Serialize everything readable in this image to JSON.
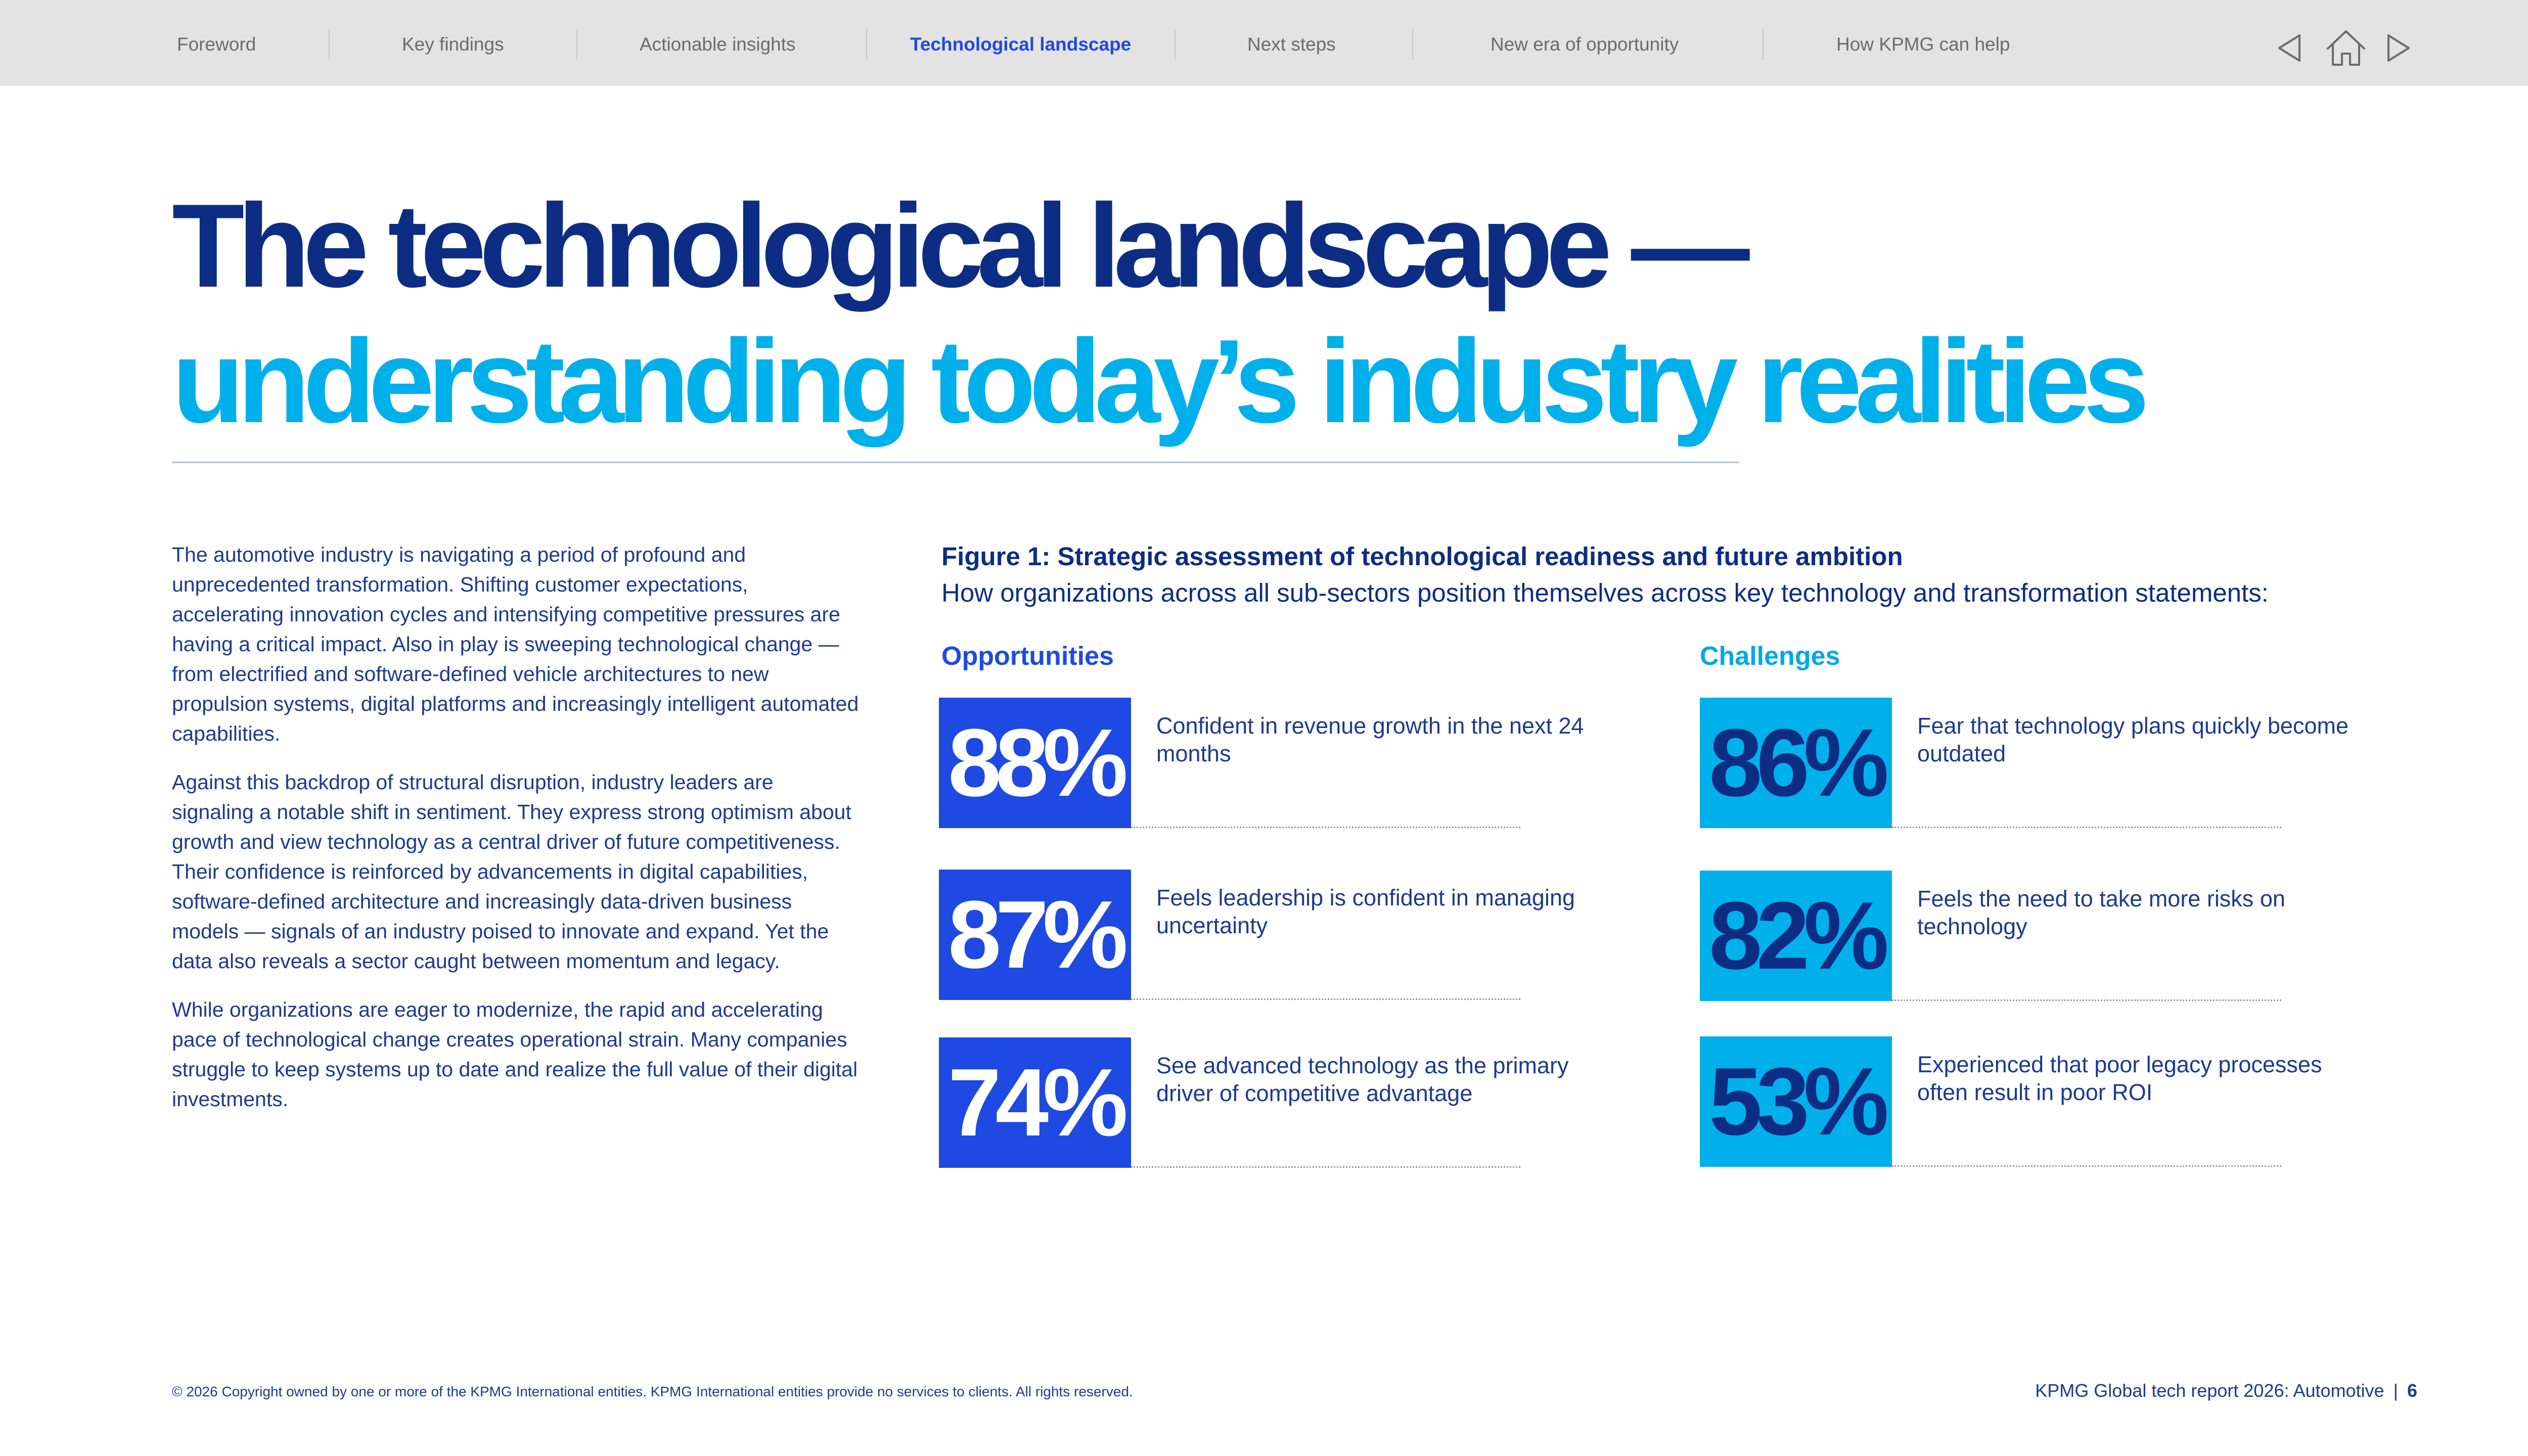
{
  "nav": {
    "items": [
      {
        "label": "Foreword"
      },
      {
        "label": "Key findings"
      },
      {
        "label": "Actionable insights"
      },
      {
        "label": "Technological landscape",
        "active": true
      },
      {
        "label": "Next steps"
      },
      {
        "label": "New era of opportunity"
      },
      {
        "label": "How KPMG can help"
      }
    ],
    "controls": [
      "back-arrow-icon",
      "home-icon",
      "forward-arrow-icon"
    ]
  },
  "headline": {
    "line1": "The technological landscape —",
    "line2": "understanding today’s industry realities"
  },
  "intro": [
    "The automotive industry is navigating a period of profound and unprecedented transformation. Shifting customer expectations, accelerating innovation cycles and intensifying competitive pressures are having a critical impact. Also in play is sweeping technological change — from electrified and software-defined vehicle architectures to new propulsion systems, digital platforms and increasingly intelligent automated capabilities.",
    "Against this backdrop of structural disruption, industry leaders are signaling a notable shift in sentiment. They express strong optimism about growth and view technology as a central driver of future competitiveness. Their confidence is reinforced by advancements in digital capabilities, software-defined architecture and increasingly data-driven business models — signals of an industry poised to innovate and expand. Yet the data also reveals a sector caught between momentum and legacy.",
    "While organizations are eager to modernize, the rapid and accelerating pace of technological change creates operational strain. Many companies struggle to keep systems up to date and realize the full value of their digital investments."
  ],
  "figure": {
    "title": "Figure 1: Strategic assessment of technological readiness and future ambition",
    "subtitle": "How organizations across all sub-sectors position themselves across key technology and transformation statements:",
    "opportunities": {
      "heading": "Opportunities",
      "items": [
        {
          "value": "88%",
          "text": "Confident in revenue growth in the next 24 months"
        },
        {
          "value": "87%",
          "text": "Feels leadership is confident in managing uncertainty"
        },
        {
          "value": "74%",
          "text": "See advanced technology as the primary driver of competitive advantage"
        }
      ]
    },
    "challenges": {
      "heading": "Challenges",
      "items": [
        {
          "value": "86%",
          "text": "Fear that technology plans quickly become outdated"
        },
        {
          "value": "82%",
          "text": "Feels the need to take more risks on technology"
        },
        {
          "value": "53%",
          "text": "Experienced that poor legacy processes often result in poor ROI"
        }
      ]
    }
  },
  "footer": {
    "copyright": "© 2026 Copyright owned by one or more of the KPMG International entities. KPMG International entities provide no services to clients. All rights reserved.",
    "report": "KPMG Global tech report 2026: Automotive",
    "separator": "|",
    "page": "6"
  },
  "colors": {
    "navy": "#0c2d83",
    "cobalt": "#1e49e2",
    "cyan": "#00b0ea",
    "nav_bg": "#e3e3e3"
  }
}
